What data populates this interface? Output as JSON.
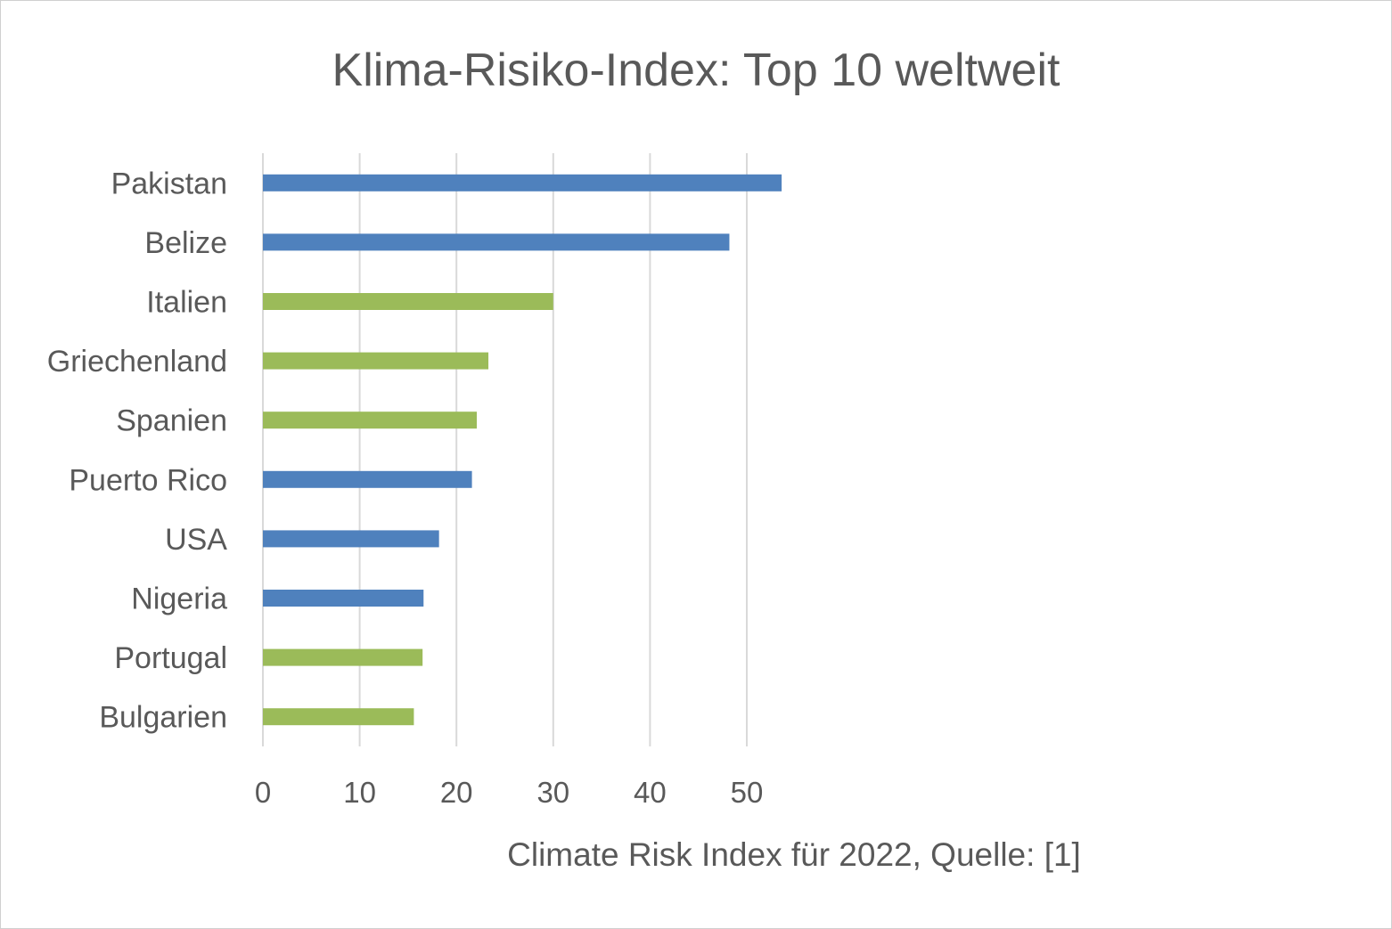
{
  "chart_data": {
    "type": "bar",
    "orientation": "horizontal",
    "title": "Klima-Risiko-Index: Top 10 weltweit",
    "xlabel": "Climate Risk Index für 2022, Quelle: [1]",
    "ylabel": "",
    "xlim": [
      0,
      55
    ],
    "xticks": [
      0,
      10,
      20,
      30,
      40,
      50
    ],
    "grid": true,
    "legend": "none",
    "colors": {
      "blue": "#4f81bd",
      "green": "#9bbb59"
    },
    "categories": [
      "Pakistan",
      "Belize",
      "Italien",
      "Griechenland",
      "Spanien",
      "Puerto Rico",
      "USA",
      "Nigeria",
      "Portugal",
      "Bulgarien"
    ],
    "values": [
      53.6,
      48.2,
      30.0,
      23.3,
      22.1,
      21.6,
      18.2,
      16.6,
      16.5,
      15.6
    ],
    "bar_colors": [
      "blue",
      "blue",
      "green",
      "green",
      "green",
      "blue",
      "blue",
      "blue",
      "green",
      "green"
    ]
  }
}
